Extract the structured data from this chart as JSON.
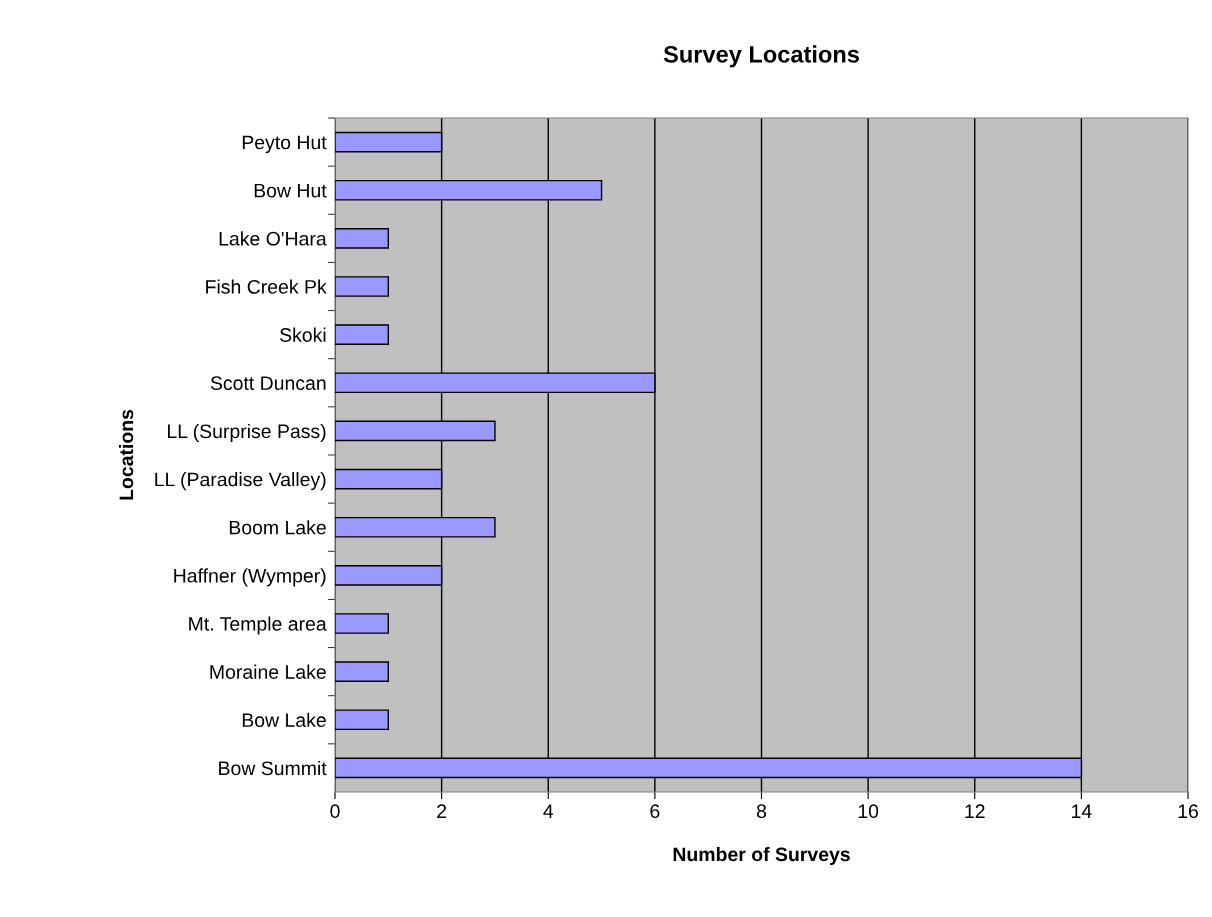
{
  "chart_data": {
    "type": "bar",
    "orientation": "horizontal",
    "title": "Survey Locations",
    "xlabel": "Number of Surveys",
    "ylabel": "Locations",
    "categories": [
      "Peyto Hut",
      "Bow Hut",
      "Lake O'Hara",
      "Fish Creek Pk",
      "Skoki",
      "Scott Duncan",
      "LL (Surprise Pass)",
      "LL (Paradise Valley)",
      "Boom Lake",
      "Haffner (Wymper)",
      "Mt. Temple area",
      "Moraine Lake",
      "Bow Lake",
      "Bow Summit"
    ],
    "values": [
      2,
      5,
      1,
      1,
      1,
      6,
      3,
      2,
      3,
      2,
      1,
      1,
      1,
      14
    ],
    "color": "#9999ff",
    "xlim": [
      0,
      16
    ],
    "xticks": [
      0,
      2,
      4,
      6,
      8,
      10,
      12,
      14,
      16
    ],
    "grid": "x",
    "legend": false
  }
}
